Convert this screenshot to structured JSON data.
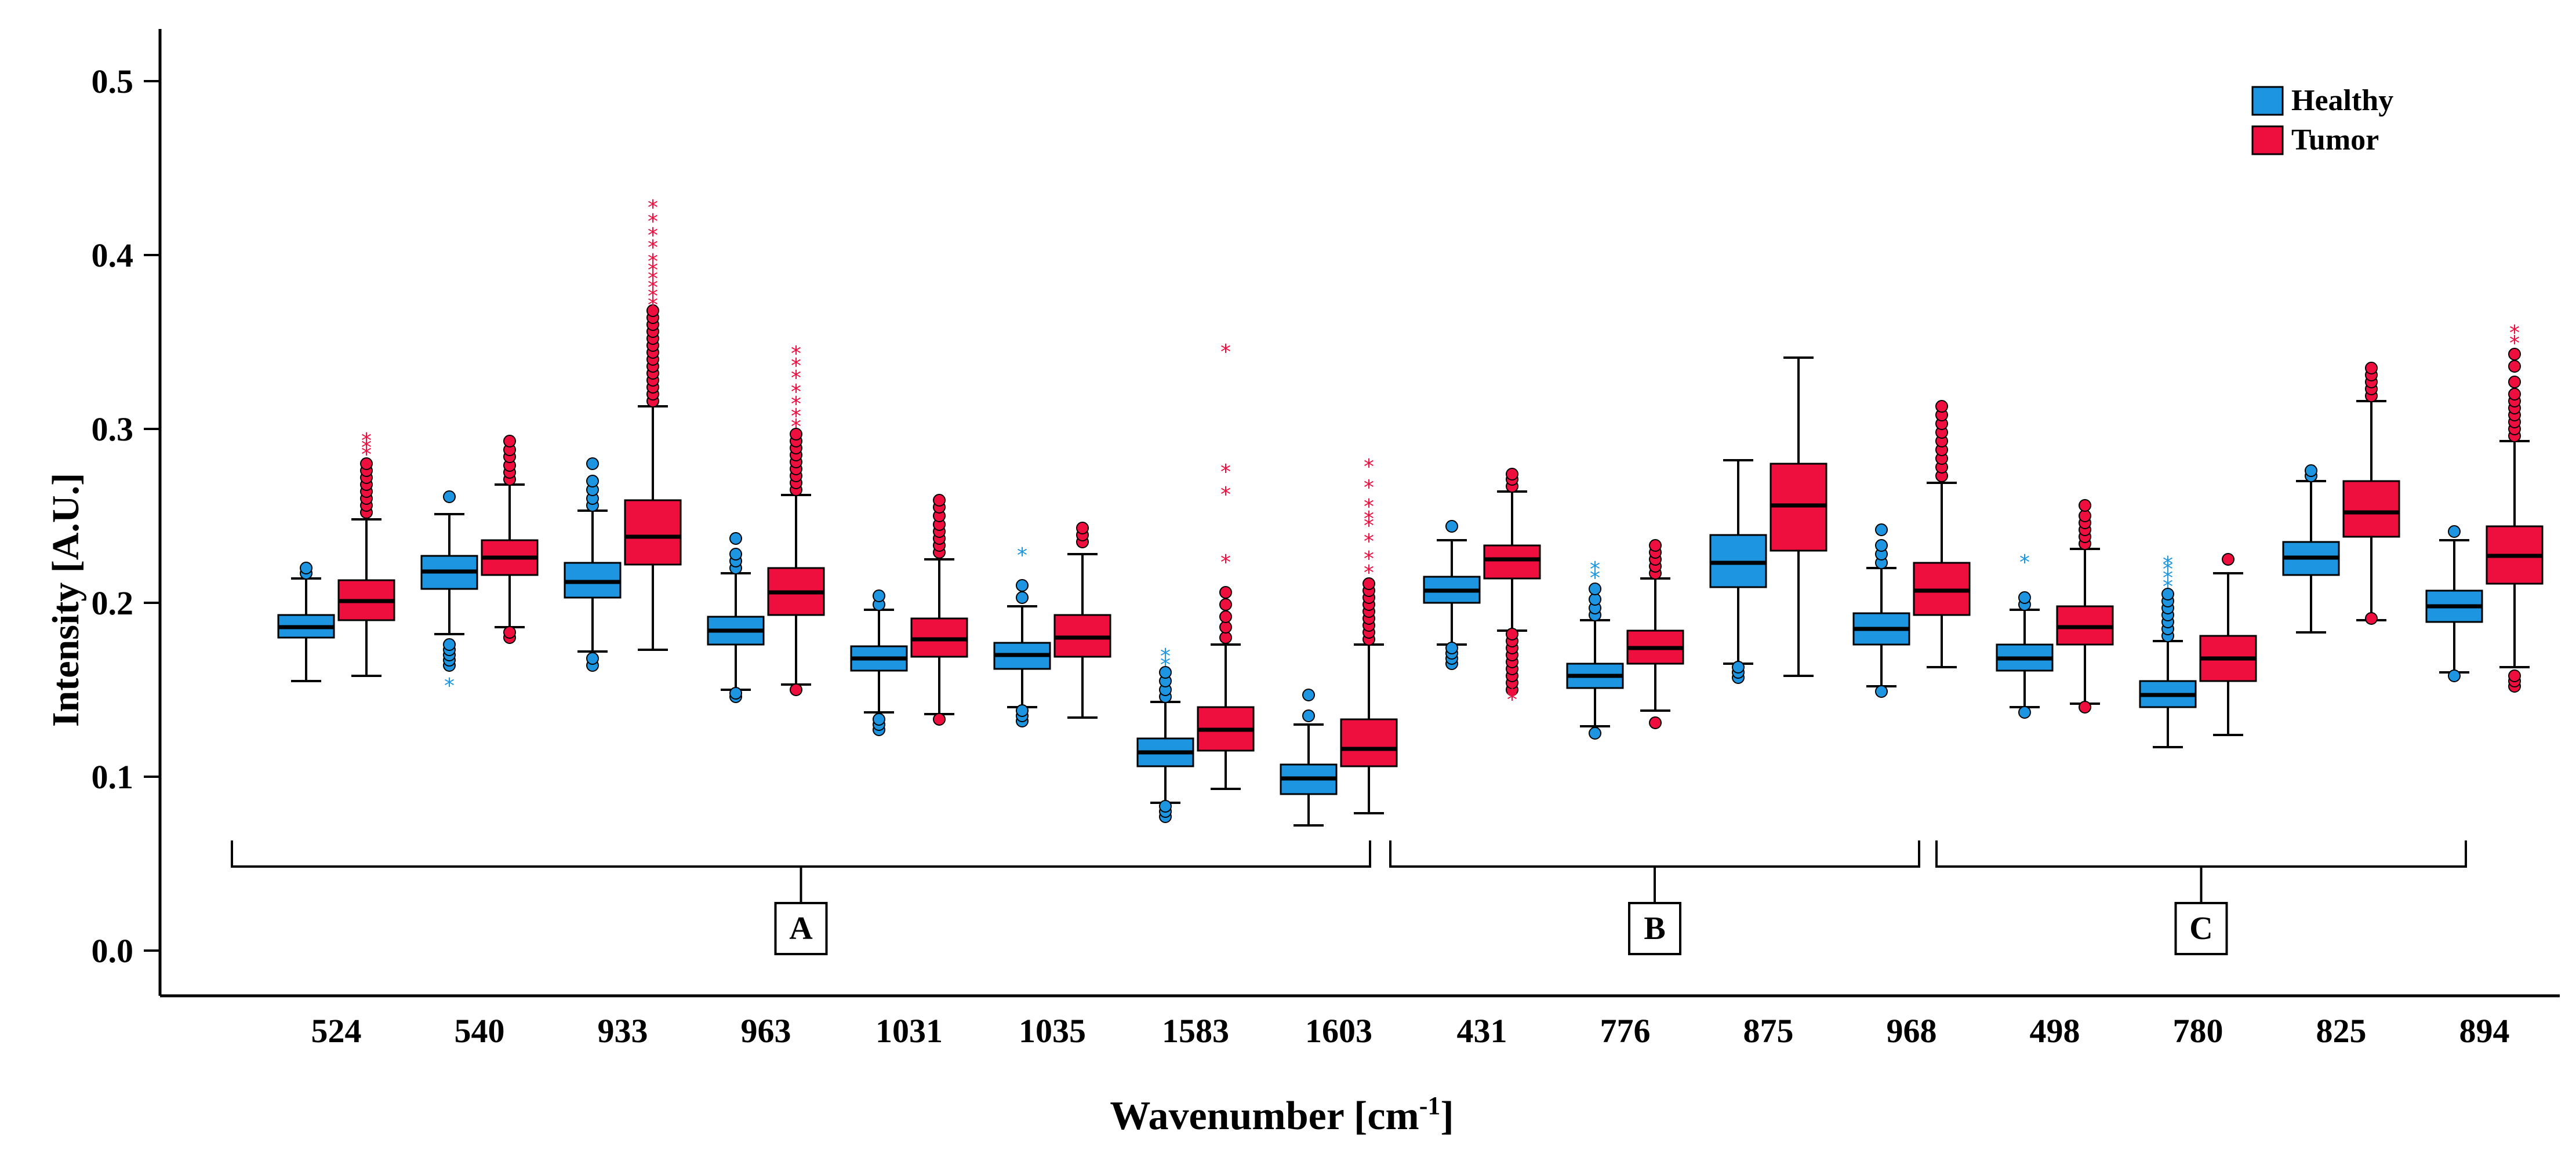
{
  "chart_data": {
    "type": "boxplot",
    "xlabel": "Wavenumber [cm",
    "xlabel_sup": "-1",
    "xlabel_end": "]",
    "ylabel": "Intensity [A.U.]",
    "ylim": [
      0.0,
      0.52
    ],
    "yticks": [
      "0.0",
      "0.1",
      "0.2",
      "0.3",
      "0.4",
      "0.5"
    ],
    "ytick_values": [
      0.0,
      0.1,
      0.2,
      0.3,
      0.4,
      0.5
    ],
    "legend": [
      {
        "name": "Healthy",
        "color": "#1e95e0"
      },
      {
        "name": "Tumor",
        "color": "#ee0f3f"
      }
    ],
    "categories": [
      "524",
      "540",
      "933",
      "963",
      "1031",
      "1035",
      "1583",
      "1603",
      "431",
      "776",
      "875",
      "968",
      "498",
      "780",
      "825",
      "894"
    ],
    "groups": [
      {
        "label": "A",
        "from": 0,
        "to": 7
      },
      {
        "label": "B",
        "from": 8,
        "to": 11
      },
      {
        "label": "C",
        "from": 12,
        "to": 15
      }
    ],
    "series": [
      {
        "name": "Healthy",
        "color": "#1e95e0",
        "boxes": [
          {
            "wlo": 0.155,
            "q1": 0.18,
            "med": 0.186,
            "q3": 0.193,
            "whi": 0.214,
            "circles": [
              0.217,
              0.22
            ],
            "stars": []
          },
          {
            "wlo": 0.182,
            "q1": 0.208,
            "med": 0.218,
            "q3": 0.227,
            "whi": 0.251,
            "circles": [
              0.164,
              0.167,
              0.17,
              0.173,
              0.176,
              0.261
            ],
            "stars": [
              0.153
            ]
          },
          {
            "wlo": 0.172,
            "q1": 0.203,
            "med": 0.212,
            "q3": 0.223,
            "whi": 0.253,
            "circles": [
              0.164,
              0.168,
              0.256,
              0.26,
              0.265,
              0.27,
              0.28
            ],
            "stars": []
          },
          {
            "wlo": 0.15,
            "q1": 0.176,
            "med": 0.184,
            "q3": 0.192,
            "whi": 0.217,
            "circles": [
              0.146,
              0.148,
              0.22,
              0.224,
              0.228,
              0.237
            ],
            "stars": []
          },
          {
            "wlo": 0.137,
            "q1": 0.161,
            "med": 0.168,
            "q3": 0.175,
            "whi": 0.196,
            "circles": [
              0.127,
              0.13,
              0.133,
              0.199,
              0.204
            ],
            "stars": []
          },
          {
            "wlo": 0.14,
            "q1": 0.162,
            "med": 0.17,
            "q3": 0.177,
            "whi": 0.198,
            "circles": [
              0.132,
              0.135,
              0.138,
              0.203,
              0.21
            ],
            "stars": [
              0.228
            ]
          },
          {
            "wlo": 0.085,
            "q1": 0.106,
            "med": 0.114,
            "q3": 0.122,
            "whi": 0.143,
            "circles": [
              0.077,
              0.08,
              0.083,
              0.146,
              0.15,
              0.155,
              0.16
            ],
            "stars": [
              0.165,
              0.17
            ]
          },
          {
            "wlo": 0.072,
            "q1": 0.09,
            "med": 0.099,
            "q3": 0.107,
            "whi": 0.13,
            "circles": [
              0.135,
              0.147
            ],
            "stars": []
          },
          {
            "wlo": 0.176,
            "q1": 0.2,
            "med": 0.207,
            "q3": 0.215,
            "whi": 0.236,
            "circles": [
              0.165,
              0.168,
              0.171,
              0.174,
              0.244
            ],
            "stars": []
          },
          {
            "wlo": 0.129,
            "q1": 0.151,
            "med": 0.158,
            "q3": 0.165,
            "whi": 0.19,
            "circles": [
              0.125,
              0.193,
              0.197,
              0.202,
              0.208
            ],
            "stars": [
              0.215,
              0.22
            ]
          },
          {
            "wlo": 0.165,
            "q1": 0.209,
            "med": 0.223,
            "q3": 0.239,
            "whi": 0.282,
            "circles": [
              0.157,
              0.16,
              0.163
            ],
            "stars": []
          },
          {
            "wlo": 0.152,
            "q1": 0.176,
            "med": 0.185,
            "q3": 0.194,
            "whi": 0.22,
            "circles": [
              0.149,
              0.223,
              0.228,
              0.233,
              0.242
            ],
            "stars": []
          },
          {
            "wlo": 0.14,
            "q1": 0.161,
            "med": 0.168,
            "q3": 0.176,
            "whi": 0.196,
            "circles": [
              0.137,
              0.199,
              0.203
            ],
            "stars": [
              0.224
            ]
          },
          {
            "wlo": 0.117,
            "q1": 0.14,
            "med": 0.147,
            "q3": 0.155,
            "whi": 0.178,
            "circles": [
              0.181,
              0.185,
              0.189,
              0.193,
              0.197,
              0.201,
              0.205
            ],
            "stars": [
              0.21,
              0.215,
              0.22,
              0.223
            ]
          },
          {
            "wlo": 0.183,
            "q1": 0.216,
            "med": 0.226,
            "q3": 0.235,
            "whi": 0.27,
            "circles": [
              0.273,
              0.276
            ],
            "stars": []
          },
          {
            "wlo": 0.16,
            "q1": 0.189,
            "med": 0.198,
            "q3": 0.207,
            "whi": 0.236,
            "circles": [
              0.158,
              0.241
            ],
            "stars": []
          }
        ]
      },
      {
        "name": "Tumor",
        "color": "#ee0f3f",
        "boxes": [
          {
            "wlo": 0.158,
            "q1": 0.19,
            "med": 0.201,
            "q3": 0.213,
            "whi": 0.248,
            "circles": [
              0.252,
              0.256,
              0.26,
              0.264,
              0.268,
              0.272,
              0.276,
              0.28
            ],
            "stars": [
              0.286,
              0.29,
              0.294
            ]
          },
          {
            "wlo": 0.186,
            "q1": 0.216,
            "med": 0.226,
            "q3": 0.236,
            "whi": 0.268,
            "circles": [
              0.18,
              0.183,
              0.271,
              0.275,
              0.279,
              0.284,
              0.288,
              0.293
            ],
            "stars": []
          },
          {
            "wlo": 0.173,
            "q1": 0.222,
            "med": 0.238,
            "q3": 0.259,
            "whi": 0.313,
            "circles": [
              0.316,
              0.32,
              0.324,
              0.328,
              0.332,
              0.336,
              0.34,
              0.344,
              0.348,
              0.352,
              0.356,
              0.36,
              0.364,
              0.368
            ],
            "stars": [
              0.372,
              0.377,
              0.382,
              0.387,
              0.392,
              0.397,
              0.405,
              0.412,
              0.42,
              0.428
            ]
          },
          {
            "wlo": 0.153,
            "q1": 0.193,
            "med": 0.206,
            "q3": 0.22,
            "whi": 0.262,
            "circles": [
              0.15,
              0.265,
              0.269,
              0.273,
              0.277,
              0.281,
              0.285,
              0.289,
              0.293,
              0.297
            ],
            "stars": [
              0.302,
              0.308,
              0.315,
              0.322,
              0.33,
              0.337,
              0.344
            ]
          },
          {
            "wlo": 0.136,
            "q1": 0.169,
            "med": 0.179,
            "q3": 0.191,
            "whi": 0.225,
            "circles": [
              0.133,
              0.229,
              0.233,
              0.237,
              0.241,
              0.245,
              0.25,
              0.255,
              0.259
            ],
            "stars": []
          },
          {
            "wlo": 0.134,
            "q1": 0.169,
            "med": 0.18,
            "q3": 0.193,
            "whi": 0.228,
            "circles": [
              0.235,
              0.239,
              0.243
            ],
            "stars": []
          },
          {
            "wlo": 0.093,
            "q1": 0.115,
            "med": 0.127,
            "q3": 0.14,
            "whi": 0.176,
            "circles": [
              0.18,
              0.186,
              0.192,
              0.199,
              0.206
            ],
            "stars": [
              0.224,
              0.263,
              0.276,
              0.345
            ]
          },
          {
            "wlo": 0.079,
            "q1": 0.106,
            "med": 0.116,
            "q3": 0.133,
            "whi": 0.176,
            "circles": [
              0.179,
              0.183,
              0.187,
              0.191,
              0.195,
              0.199,
              0.203,
              0.207,
              0.211
            ],
            "stars": [
              0.218,
              0.226,
              0.236,
              0.245,
              0.249,
              0.256,
              0.267,
              0.279
            ]
          },
          {
            "wlo": 0.184,
            "q1": 0.214,
            "med": 0.225,
            "q3": 0.233,
            "whi": 0.264,
            "circles": [
              0.15,
              0.154,
              0.158,
              0.162,
              0.166,
              0.17,
              0.174,
              0.178,
              0.182,
              0.267,
              0.271,
              0.274
            ],
            "stars": [
              0.145,
              0.148
            ]
          },
          {
            "wlo": 0.138,
            "q1": 0.165,
            "med": 0.174,
            "q3": 0.184,
            "whi": 0.214,
            "circles": [
              0.131,
              0.217,
              0.221,
              0.225,
              0.229,
              0.233
            ],
            "stars": []
          },
          {
            "wlo": 0.158,
            "q1": 0.23,
            "med": 0.256,
            "q3": 0.28,
            "whi": 0.341,
            "circles": [],
            "stars": []
          },
          {
            "wlo": 0.163,
            "q1": 0.193,
            "med": 0.207,
            "q3": 0.223,
            "whi": 0.269,
            "circles": [
              0.273,
              0.278,
              0.283,
              0.288,
              0.293,
              0.298,
              0.303,
              0.308,
              0.313
            ],
            "stars": []
          },
          {
            "wlo": 0.142,
            "q1": 0.176,
            "med": 0.186,
            "q3": 0.198,
            "whi": 0.231,
            "circles": [
              0.14,
              0.234,
              0.238,
              0.242,
              0.246,
              0.25,
              0.256
            ],
            "stars": []
          },
          {
            "wlo": 0.124,
            "q1": 0.155,
            "med": 0.168,
            "q3": 0.181,
            "whi": 0.217,
            "circles": [
              0.225
            ],
            "stars": []
          },
          {
            "wlo": 0.19,
            "q1": 0.238,
            "med": 0.252,
            "q3": 0.27,
            "whi": 0.316,
            "circles": [
              0.191,
              0.319,
              0.323,
              0.327,
              0.331,
              0.335
            ],
            "stars": []
          },
          {
            "wlo": 0.163,
            "q1": 0.211,
            "med": 0.227,
            "q3": 0.244,
            "whi": 0.293,
            "circles": [
              0.152,
              0.155,
              0.158,
              0.296,
              0.3,
              0.304,
              0.308,
              0.312,
              0.316,
              0.32,
              0.327,
              0.336,
              0.343
            ],
            "stars": [
              0.35,
              0.356
            ]
          }
        ]
      }
    ]
  }
}
